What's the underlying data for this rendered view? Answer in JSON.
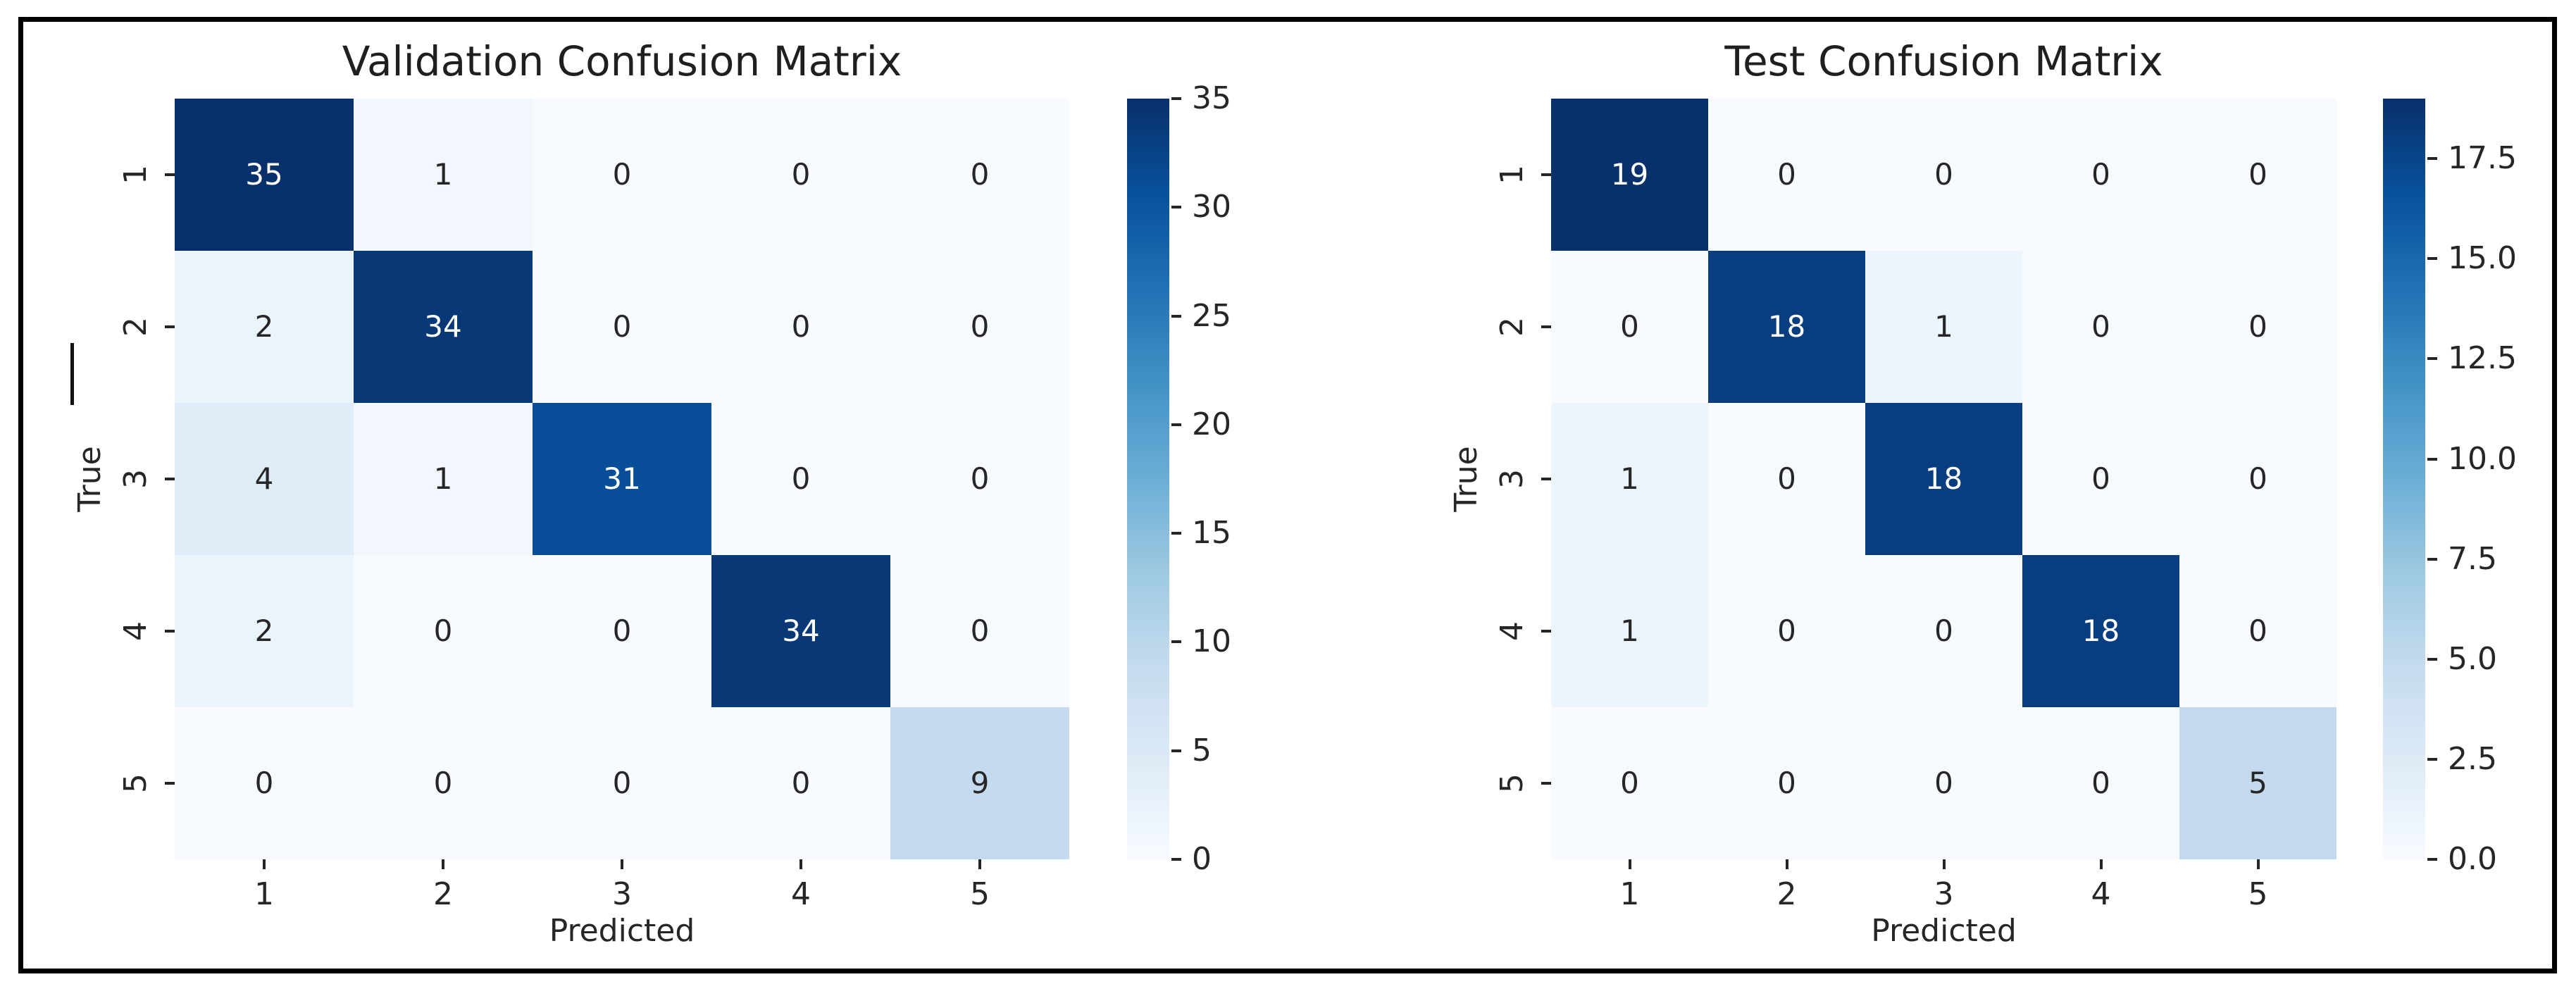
{
  "figure": {
    "background": "#ffffff",
    "frame_color": "#000000",
    "text_color": "#262626",
    "colormap": "Blues",
    "colormap_min_color": "#f7fbff",
    "colormap_max_color": "#08306b"
  },
  "chart_data": [
    {
      "type": "heatmap",
      "title": "Validation Confusion Matrix",
      "xlabel": "Predicted",
      "ylabel": "True",
      "x_tick_labels": [
        "1",
        "2",
        "3",
        "4",
        "5"
      ],
      "y_tick_labels": [
        "1",
        "2",
        "3",
        "4",
        "5"
      ],
      "values": [
        [
          35,
          1,
          0,
          0,
          0
        ],
        [
          2,
          34,
          0,
          0,
          0
        ],
        [
          4,
          1,
          31,
          0,
          0
        ],
        [
          2,
          0,
          0,
          34,
          0
        ],
        [
          0,
          0,
          0,
          0,
          9
        ]
      ],
      "vmin": 0,
      "vmax": 35,
      "colormap": "Blues",
      "annotated": true,
      "grid": false,
      "colorbar": {
        "position": "right",
        "ticks": [
          {
            "label": "0",
            "value": 0
          },
          {
            "label": "5",
            "value": 5
          },
          {
            "label": "10",
            "value": 10
          },
          {
            "label": "15",
            "value": 15
          },
          {
            "label": "20",
            "value": 20
          },
          {
            "label": "25",
            "value": 25
          },
          {
            "label": "30",
            "value": 30
          },
          {
            "label": "35",
            "value": 35
          }
        ]
      }
    },
    {
      "type": "heatmap",
      "title": "Test Confusion Matrix",
      "xlabel": "Predicted",
      "ylabel": "True",
      "x_tick_labels": [
        "1",
        "2",
        "3",
        "4",
        "5"
      ],
      "y_tick_labels": [
        "1",
        "2",
        "3",
        "4",
        "5"
      ],
      "values": [
        [
          19,
          0,
          0,
          0,
          0
        ],
        [
          0,
          18,
          1,
          0,
          0
        ],
        [
          1,
          0,
          18,
          0,
          0
        ],
        [
          1,
          0,
          0,
          18,
          0
        ],
        [
          0,
          0,
          0,
          0,
          5
        ]
      ],
      "vmin": 0,
      "vmax": 19,
      "colormap": "Blues",
      "annotated": true,
      "grid": false,
      "colorbar": {
        "position": "right",
        "ticks": [
          {
            "label": "0.0",
            "value": 0
          },
          {
            "label": "2.5",
            "value": 2.5
          },
          {
            "label": "5.0",
            "value": 5
          },
          {
            "label": "7.5",
            "value": 7.5
          },
          {
            "label": "10.0",
            "value": 10
          },
          {
            "label": "12.5",
            "value": 12.5
          },
          {
            "label": "15.0",
            "value": 15
          },
          {
            "label": "17.5",
            "value": 17.5
          }
        ]
      }
    }
  ]
}
